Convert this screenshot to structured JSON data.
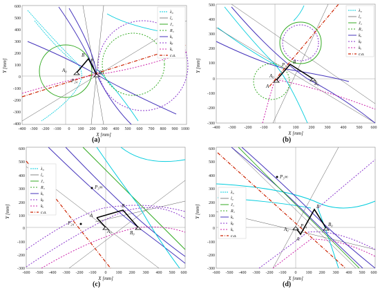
{
  "figure": {
    "captions": [
      "(a)",
      "(b)",
      "(c)",
      "(d)"
    ],
    "xlabel": "X [mm]",
    "ylabel": "Y [mm]"
  },
  "panels": [
    {
      "id": "a",
      "xticks": [
        "-400",
        "-300",
        "-200",
        "-100",
        "0",
        "100",
        "200",
        "300",
        "400",
        "500",
        "600",
        "700",
        "800",
        "900",
        "1000"
      ],
      "yticks": [
        "600",
        "500",
        "400",
        "300",
        "200",
        "100",
        "0",
        "-100",
        "-200",
        "-300",
        "-400"
      ],
      "legend": [
        "λ₀",
        "l₀",
        "J₃",
        "R₃",
        "kₐ",
        "kᵦ",
        "kᵤ",
        "c.a."
      ],
      "points": [
        "B",
        "P₁",
        "A₀",
        "P₂₄",
        "B₀"
      ]
    },
    {
      "id": "b",
      "xticks": [
        "-400",
        "-300",
        "-200",
        "-100",
        "0",
        "100",
        "200",
        "300",
        "400",
        "500",
        "600"
      ],
      "yticks": [
        "500",
        "400",
        "300",
        "200",
        "100",
        "0",
        "-100",
        "-200",
        "-300"
      ],
      "legend": [
        "λ₀",
        "l₀",
        "J₃",
        "R₃",
        "kₐ",
        "kᵦ",
        "kᵤ",
        "c.a."
      ],
      "points": [
        "B",
        "P₃",
        "A₀",
        "A",
        "B₀"
      ]
    },
    {
      "id": "c",
      "xticks": [
        "-600",
        "-500",
        "-400",
        "-300",
        "-200",
        "-100",
        "0",
        "100",
        "200",
        "300",
        "400",
        "500",
        "600"
      ],
      "yticks": [
        "600",
        "500",
        "400",
        "300",
        "200",
        "100",
        "0",
        "-100",
        "-200",
        "-300"
      ],
      "legend": [
        "λ₀",
        "l₀",
        "J₃",
        "R₃",
        "kₐ",
        "kᵦ",
        "kᵤ",
        "c.a."
      ],
      "points": [
        "P₃∞",
        "B",
        "A",
        "P₂₄",
        "A₀",
        "B₀"
      ]
    },
    {
      "id": "d",
      "xticks": [
        "-600",
        "-500",
        "-400",
        "-300",
        "-200",
        "-100",
        "0",
        "100",
        "200",
        "300",
        "400",
        "500",
        "600"
      ],
      "yticks": [
        "600",
        "500",
        "400",
        "300",
        "200",
        "100",
        "0",
        "-100",
        "-200",
        "-300"
      ],
      "legend": [
        "λ₀",
        "l₀",
        "J₃",
        "R₃",
        "kₐ",
        "kᵦ",
        "kᵤ",
        "c.a."
      ],
      "points": [
        "P₃∞",
        "B",
        "A₀",
        "P₂₄",
        "A",
        "B₀"
      ]
    }
  ],
  "colors": {
    "lambda": "#00ccdd",
    "l0": "#333333",
    "J3": "#33aa22",
    "R3": "#33aa22",
    "ka": "#4433bb",
    "kb": "#8833cc",
    "ku": "#cc22aa",
    "ca": "#cc2200"
  }
}
